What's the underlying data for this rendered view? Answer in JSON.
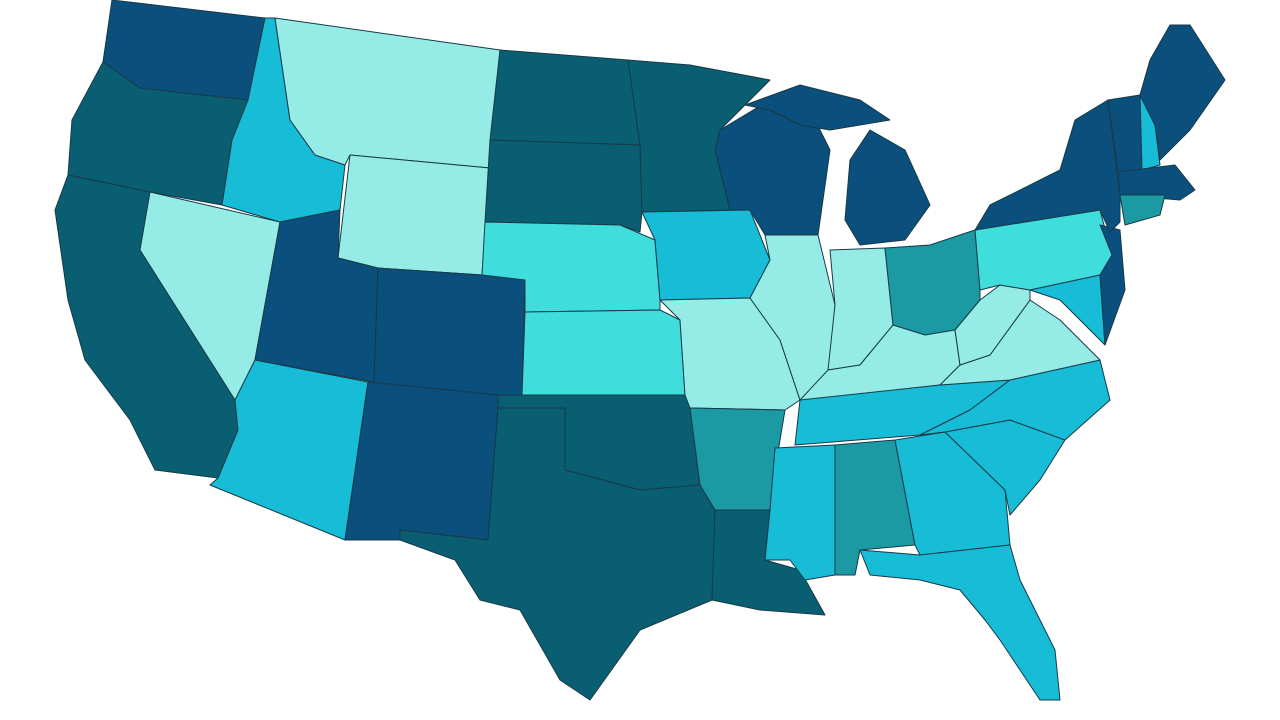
{
  "map": {
    "palette": [
      "#0b4f7c",
      "#0a5e72",
      "#1c9aa3",
      "#17bcd6",
      "#3fdedd",
      "#95ece6"
    ]
  }
}
